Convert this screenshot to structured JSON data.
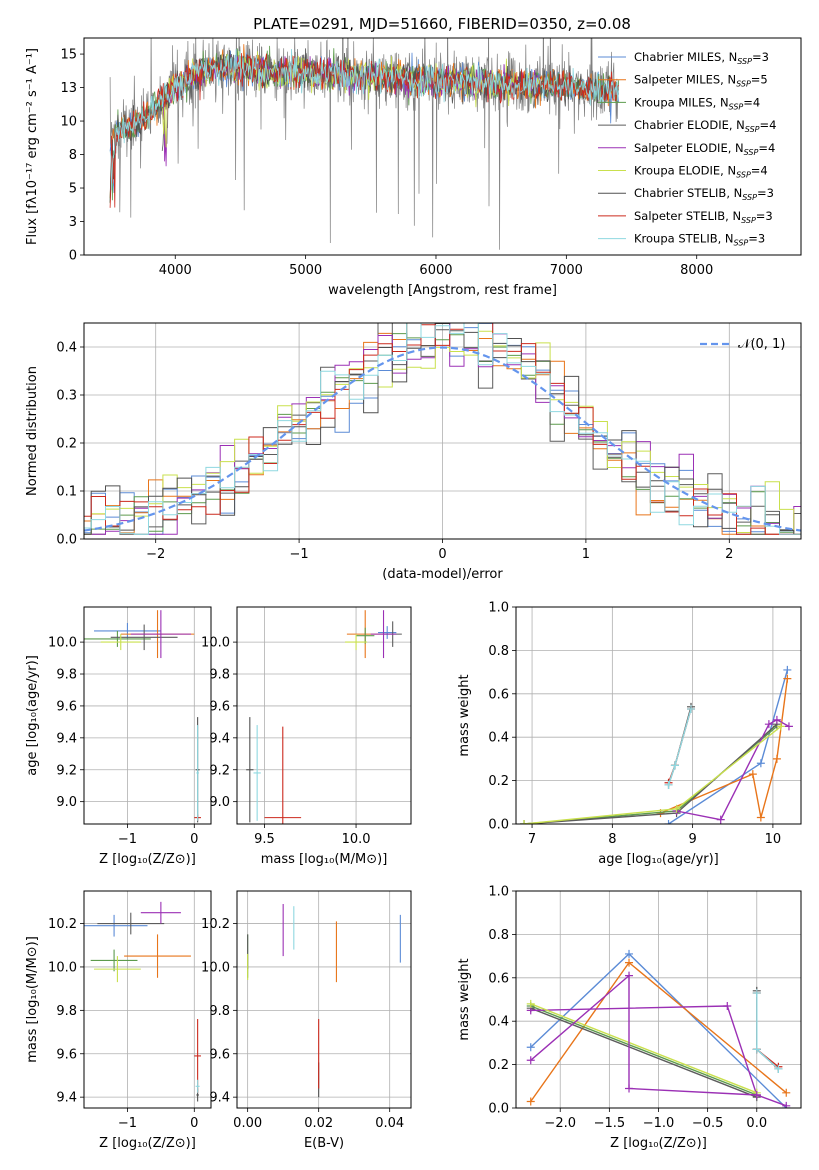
{
  "figure": {
    "title": "PLATE=0291, MJD=51660, FIBERID=0350, z=0.08"
  },
  "colors": {
    "Chabrier MILES": "#5b8bd6",
    "Salpeter MILES": "#e8751a",
    "Kroupa MILES": "#5d9b4d",
    "Chabrier ELODIE": "#5c5c5c",
    "Salpeter ELODIE": "#9b30b5",
    "Kroupa ELODIE": "#c9e04d",
    "Chabrier STELIB": "#505050",
    "Salpeter STELIB": "#cc2a1e",
    "Kroupa STELIB": "#8fd8e0",
    "data": "#7f7f7f",
    "gaussian": "#6495ed"
  },
  "chart_data": [
    {
      "id": "spectrum",
      "type": "line",
      "xlabel": "wavelength [Angstrom, rest frame]",
      "ylabel": "Flux [fλ10⁻¹⁷ erg cm⁻² s⁻¹ A⁻¹]",
      "xlim": [
        3300,
        8800
      ],
      "ylim": [
        0,
        16.2
      ],
      "xticks": [
        4000,
        5000,
        6000,
        7000,
        8000
      ],
      "yticks": [
        0.0,
        2.5,
        5.0,
        7.5,
        10.0,
        12.5,
        15.0
      ],
      "legend_position": "upper right",
      "legend": [
        {
          "label": "Chabrier MILES, N",
          "sub": "SSP",
          "eq": "=3"
        },
        {
          "label": "Salpeter MILES, N",
          "sub": "SSP",
          "eq": "=5"
        },
        {
          "label": "Kroupa MILES, N",
          "sub": "SSP",
          "eq": "=4"
        },
        {
          "label": "Chabrier ELODIE, N",
          "sub": "SSP",
          "eq": "=4"
        },
        {
          "label": "Salpeter ELODIE, N",
          "sub": "SSP",
          "eq": "=4"
        },
        {
          "label": "Kroupa ELODIE, N",
          "sub": "SSP",
          "eq": "=4"
        },
        {
          "label": "Chabrier STELIB, N",
          "sub": "SSP",
          "eq": "=3"
        },
        {
          "label": "Salpeter STELIB, N",
          "sub": "SSP",
          "eq": "=3"
        },
        {
          "label": "Kroupa STELIB, N",
          "sub": "SSP",
          "eq": "=3"
        }
      ],
      "continuum": [
        [
          3500,
          9.0
        ],
        [
          3600,
          9.4
        ],
        [
          3700,
          9.8
        ],
        [
          3800,
          10.5
        ],
        [
          3900,
          11.5
        ],
        [
          4000,
          12.6
        ],
        [
          4100,
          13.3
        ],
        [
          4200,
          13.7
        ],
        [
          4400,
          14.0
        ],
        [
          4700,
          13.8
        ],
        [
          5000,
          13.6
        ],
        [
          5500,
          13.3
        ],
        [
          6000,
          13.0
        ],
        [
          6500,
          12.8
        ],
        [
          7000,
          12.6
        ],
        [
          7400,
          12.2
        ]
      ],
      "model_ranges": [
        [
          3500,
          7400
        ],
        [
          3500,
          7400
        ],
        [
          3500,
          7400
        ],
        [
          3900,
          6800
        ],
        [
          3900,
          6800
        ],
        [
          3900,
          6800
        ],
        [
          3500,
          7400
        ],
        [
          3500,
          7400
        ],
        [
          3500,
          7400
        ]
      ],
      "data_range": [
        3500,
        7400
      ]
    },
    {
      "id": "residuals",
      "type": "bar",
      "xlabel": "(data-model)/error",
      "ylabel": "Normed distribution",
      "xlim": [
        -2.5,
        2.5
      ],
      "ylim": [
        0,
        0.45
      ],
      "xticks": [
        -2,
        -1,
        0,
        1,
        2
      ],
      "yticks": [
        0.0,
        0.1,
        0.2,
        0.3,
        0.4
      ],
      "legend_position": "upper right",
      "legend": [
        {
          "label": "𝒩(0, 1)"
        }
      ],
      "gaussian": {
        "mean": 0,
        "sigma": 1
      }
    },
    {
      "id": "Z-age",
      "type": "scatter",
      "xlabel": "Z [log₁₀(Z/Z⊙)]",
      "ylabel": "age  [log₁₀(age/yr)]",
      "xlim": [
        -1.65,
        0.25
      ],
      "ylim": [
        8.86,
        10.22
      ],
      "xticks": [
        -1,
        0
      ],
      "yticks": [
        9.0,
        9.2,
        9.4,
        9.6,
        9.8,
        10.0
      ],
      "points": [
        {
          "model": "Chabrier MILES",
          "x": -1.0,
          "y": 10.07,
          "xerr": 0.5,
          "yerr": 0.05
        },
        {
          "model": "Salpeter MILES",
          "x": -0.55,
          "y": 10.05,
          "xerr": 0.55,
          "yerr": 0.15
        },
        {
          "model": "Kroupa MILES",
          "x": -1.15,
          "y": 10.02,
          "xerr": 0.5,
          "yerr": 0.05
        },
        {
          "model": "Chabrier ELODIE",
          "x": -0.75,
          "y": 10.03,
          "xerr": 0.5,
          "yerr": 0.08
        },
        {
          "model": "Salpeter ELODIE",
          "x": -0.5,
          "y": 10.05,
          "xerr": 0.45,
          "yerr": 0.15
        },
        {
          "model": "Kroupa ELODIE",
          "x": -1.1,
          "y": 10.0,
          "xerr": 0.3,
          "yerr": 0.05
        },
        {
          "model": "Chabrier STELIB",
          "x": 0.05,
          "y": 9.2,
          "xerr": 0.03,
          "yerr": 0.33
        },
        {
          "model": "Salpeter STELIB",
          "x": 0.05,
          "y": 8.9,
          "xerr": 0.05,
          "yerr": 0.02
        },
        {
          "model": "Kroupa STELIB",
          "x": 0.05,
          "y": 9.18,
          "xerr": 0.02,
          "yerr": 0.3
        }
      ]
    },
    {
      "id": "mass-age",
      "type": "scatter",
      "xlabel": "mass [log₁₀(M/M⊙)]",
      "ylabel": "",
      "xlim": [
        9.35,
        10.3
      ],
      "ylim": [
        8.86,
        10.22
      ],
      "xticks": [
        9.5,
        10.0
      ],
      "yticks": [
        9.0,
        9.2,
        9.4,
        9.6,
        9.8,
        10.0
      ],
      "points": [
        {
          "model": "Chabrier MILES",
          "x": 10.17,
          "y": 10.06,
          "xerr": 0.05,
          "yerr": 0.04
        },
        {
          "model": "Salpeter MILES",
          "x": 10.05,
          "y": 10.05,
          "xerr": 0.1,
          "yerr": 0.15
        },
        {
          "model": "Kroupa MILES",
          "x": 10.05,
          "y": 10.04,
          "xerr": 0.05,
          "yerr": 0.05
        },
        {
          "model": "Chabrier ELODIE",
          "x": 10.2,
          "y": 10.05,
          "xerr": 0.05,
          "yerr": 0.08
        },
        {
          "model": "Salpeter ELODIE",
          "x": 10.15,
          "y": 10.05,
          "xerr": 0.07,
          "yerr": 0.15
        },
        {
          "model": "Kroupa ELODIE",
          "x": 10.0,
          "y": 10.0,
          "xerr": 0.06,
          "yerr": 0.05
        },
        {
          "model": "Chabrier STELIB",
          "x": 9.42,
          "y": 9.2,
          "xerr": 0.02,
          "yerr": 0.33
        },
        {
          "model": "Salpeter STELIB",
          "x": 9.6,
          "y": 8.9,
          "xerr": 0.1,
          "yerr": 0.57
        },
        {
          "model": "Kroupa STELIB",
          "x": 9.46,
          "y": 9.18,
          "xerr": 0.02,
          "yerr": 0.3
        }
      ]
    },
    {
      "id": "age-weight",
      "type": "line",
      "xlabel": "age  [log₁₀(age/yr)]",
      "ylabel": "mass weight",
      "xlim": [
        6.8,
        10.35
      ],
      "ylim": [
        0,
        1.0
      ],
      "xticks": [
        7,
        8,
        9,
        10
      ],
      "yticks": [
        0.0,
        0.2,
        0.4,
        0.6,
        0.8,
        1.0
      ],
      "series": [
        {
          "model": "Chabrier MILES",
          "x": [
            8.7,
            9.85,
            10.18
          ],
          "y": [
            0.0,
            0.28,
            0.71
          ]
        },
        {
          "model": "Salpeter MILES",
          "x": [
            8.6,
            9.75,
            9.85,
            10.05,
            10.18
          ],
          "y": [
            0.05,
            0.23,
            0.03,
            0.3,
            0.67
          ]
        },
        {
          "model": "Kroupa MILES",
          "x": [
            6.9,
            8.8,
            10.05
          ],
          "y": [
            0.0,
            0.06,
            0.45
          ]
        },
        {
          "model": "Chabrier ELODIE",
          "x": [
            6.9,
            8.8,
            10.05
          ],
          "y": [
            0.0,
            0.05,
            0.46
          ]
        },
        {
          "model": "Salpeter ELODIE",
          "x": [
            8.8,
            9.35,
            9.95,
            10.05,
            10.2
          ],
          "y": [
            0.06,
            0.02,
            0.46,
            0.48,
            0.45
          ]
        },
        {
          "model": "Kroupa ELODIE",
          "x": [
            6.9,
            8.8,
            10.1
          ],
          "y": [
            0.0,
            0.07,
            0.45
          ]
        },
        {
          "model": "Chabrier STELIB",
          "x": [
            8.7,
            8.78,
            8.98
          ],
          "y": [
            0.18,
            0.27,
            0.54
          ]
        },
        {
          "model": "Salpeter STELIB",
          "x": [
            8.7,
            8.78,
            8.98
          ],
          "y": [
            0.19,
            0.27,
            0.53
          ]
        },
        {
          "model": "Kroupa STELIB",
          "x": [
            8.7,
            8.78,
            8.98
          ],
          "y": [
            0.18,
            0.27,
            0.53
          ]
        }
      ]
    },
    {
      "id": "Z-mass",
      "type": "scatter",
      "xlabel": "Z [log₁₀(Z/Z⊙)]",
      "ylabel": "mass [log₁₀(M/M⊙)]",
      "xlim": [
        -1.65,
        0.25
      ],
      "ylim": [
        9.35,
        10.35
      ],
      "xticks": [
        -1,
        0
      ],
      "yticks": [
        9.4,
        9.6,
        9.8,
        10.0,
        10.2
      ],
      "points": [
        {
          "model": "Chabrier MILES",
          "x": -1.2,
          "y": 10.19,
          "xerr": 0.5,
          "yerr": 0.05
        },
        {
          "model": "Salpeter MILES",
          "x": -0.55,
          "y": 10.05,
          "xerr": 0.5,
          "yerr": 0.1
        },
        {
          "model": "Kroupa MILES",
          "x": -1.2,
          "y": 10.03,
          "xerr": 0.35,
          "yerr": 0.05
        },
        {
          "model": "Chabrier ELODIE",
          "x": -0.95,
          "y": 10.2,
          "xerr": 0.5,
          "yerr": 0.05
        },
        {
          "model": "Salpeter ELODIE",
          "x": -0.5,
          "y": 10.25,
          "xerr": 0.3,
          "yerr": 0.05
        },
        {
          "model": "Kroupa ELODIE",
          "x": -1.15,
          "y": 9.99,
          "xerr": 0.35,
          "yerr": 0.06
        },
        {
          "model": "Chabrier STELIB",
          "x": 0.05,
          "y": 9.41,
          "xerr": 0.02,
          "yerr": 0.03
        },
        {
          "model": "Salpeter STELIB",
          "x": 0.05,
          "y": 9.59,
          "xerr": 0.05,
          "yerr": 0.17
        },
        {
          "model": "Kroupa STELIB",
          "x": 0.05,
          "y": 9.45,
          "xerr": 0.03,
          "yerr": 0.03
        }
      ]
    },
    {
      "id": "ebv-mass",
      "type": "scatter",
      "xlabel": "E(B-V)",
      "ylabel": "",
      "xlim": [
        -0.003,
        0.046
      ],
      "ylim": [
        9.35,
        10.35
      ],
      "xticks": [
        0.0,
        0.02,
        0.04
      ],
      "xtick_labels": [
        "0.00",
        "0.02",
        "0.04"
      ],
      "yticks": [
        9.4,
        9.6,
        9.8,
        10.0,
        10.2
      ],
      "points": [
        {
          "model": "Chabrier MILES",
          "x": 0.043,
          "y": 10.13,
          "xerr": 0,
          "yerr": 0.11
        },
        {
          "model": "Salpeter MILES",
          "x": 0.025,
          "y": 10.07,
          "xerr": 0,
          "yerr": 0.14
        },
        {
          "model": "Kroupa MILES",
          "x": 0.0,
          "y": 10.05,
          "xerr": 0,
          "yerr": 0.1
        },
        {
          "model": "Chabrier ELODIE",
          "x": 0.0,
          "y": 10.07,
          "xerr": 0,
          "yerr": 0.08
        },
        {
          "model": "Salpeter ELODIE",
          "x": 0.01,
          "y": 10.17,
          "xerr": 0,
          "yerr": 0.12
        },
        {
          "model": "Kroupa ELODIE",
          "x": 0.0,
          "y": 10.0,
          "xerr": 0,
          "yerr": 0.06
        },
        {
          "model": "Chabrier STELIB",
          "x": 0.02,
          "y": 9.48,
          "xerr": 0,
          "yerr": 0.08
        },
        {
          "model": "Salpeter STELIB",
          "x": 0.02,
          "y": 9.6,
          "xerr": 0,
          "yerr": 0.16
        },
        {
          "model": "Kroupa STELIB",
          "x": 0.013,
          "y": 10.18,
          "xerr": 0,
          "yerr": 0.1
        }
      ]
    },
    {
      "id": "Z-weight",
      "type": "line",
      "xlabel": "Z [log₁₀(Z/Z⊙)]",
      "ylabel": "mass weight",
      "xlim": [
        -2.45,
        0.45
      ],
      "ylim": [
        0,
        1.0
      ],
      "xticks": [
        -2.0,
        -1.5,
        -1.0,
        -0.5,
        0.0
      ],
      "xtick_labels": [
        "−2.0",
        "−1.5",
        "−1.0",
        "−0.5",
        "0.0"
      ],
      "yticks": [
        0.0,
        0.2,
        0.4,
        0.6,
        0.8,
        1.0
      ],
      "series": [
        {
          "model": "Chabrier MILES",
          "x": [
            -2.3,
            -1.3,
            0.3
          ],
          "y": [
            0.28,
            0.71,
            0.0
          ]
        },
        {
          "model": "Salpeter MILES",
          "x": [
            -2.3,
            -1.3,
            0.3
          ],
          "y": [
            0.03,
            0.67,
            0.07
          ]
        },
        {
          "model": "Kroupa MILES",
          "x": [
            -2.3,
            0.0
          ],
          "y": [
            0.47,
            0.06
          ]
        },
        {
          "model": "Chabrier ELODIE",
          "x": [
            -2.3,
            0.0
          ],
          "y": [
            0.46,
            0.05
          ]
        },
        {
          "model": "Salpeter ELODIE",
          "x": [
            -2.3,
            -0.3,
            0.0
          ],
          "y": [
            0.45,
            0.47,
            0.06
          ]
        },
        {
          "model": "Kroupa ELODIE",
          "x": [
            -2.3,
            0.0
          ],
          "y": [
            0.48,
            0.07
          ]
        },
        {
          "model": "Chabrier STELIB",
          "x": [
            0.0,
            0.0,
            0.22
          ],
          "y": [
            0.54,
            0.27,
            0.18
          ]
        },
        {
          "model": "Salpeter STELIB",
          "x": [
            0.0,
            0.0,
            0.22
          ],
          "y": [
            0.53,
            0.27,
            0.19
          ]
        },
        {
          "model": "Kroupa STELIB",
          "x": [
            0.0,
            0.0,
            0.22
          ],
          "y": [
            0.53,
            0.27,
            0.18
          ]
        },
        {
          "model": "Salpeter ELODIE",
          "x": [
            -2.3,
            -1.3,
            -1.3,
            0.0,
            0.3
          ],
          "y": [
            0.22,
            0.61,
            0.09,
            0.06,
            0.01
          ]
        }
      ]
    }
  ]
}
